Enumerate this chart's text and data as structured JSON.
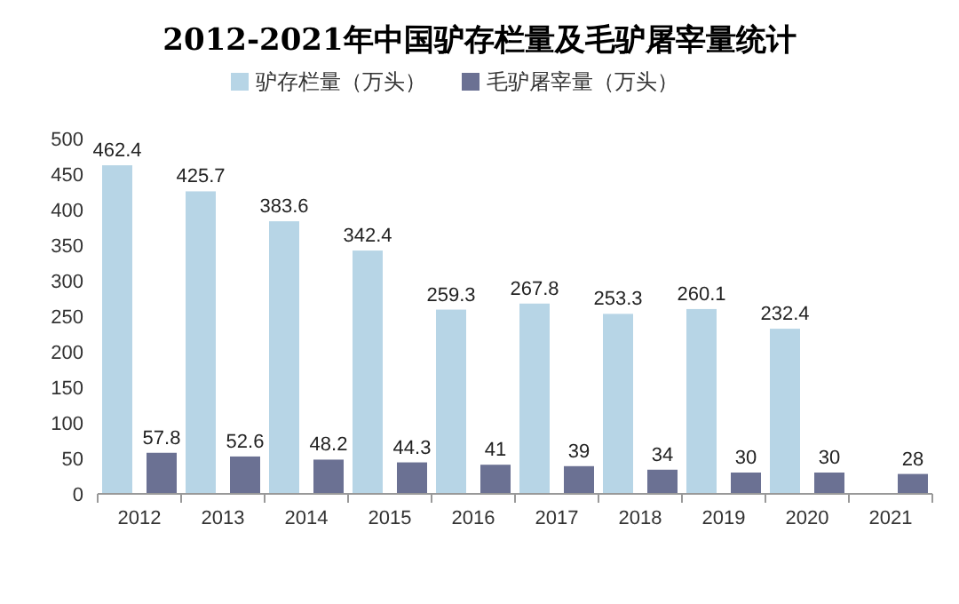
{
  "chart_data": {
    "type": "bar",
    "title": "2012-2021年中国驴存栏量及毛驴屠宰量统计",
    "categories": [
      "2012",
      "2013",
      "2014",
      "2015",
      "2016",
      "2017",
      "2018",
      "2019",
      "2020",
      "2021"
    ],
    "series": [
      {
        "name": "驴存栏量（万头）",
        "color": "#b7d5e6",
        "values": [
          462.4,
          425.7,
          383.6,
          342.4,
          259.3,
          267.8,
          253.3,
          260.1,
          232.4,
          null
        ]
      },
      {
        "name": "毛驴屠宰量（万头）",
        "color": "#6b7193",
        "values": [
          57.8,
          52.6,
          48.2,
          44.3,
          41,
          39,
          34,
          30,
          30,
          28
        ]
      }
    ],
    "ylim": [
      0,
      500
    ],
    "yticks": [
      0,
      50,
      100,
      150,
      200,
      250,
      300,
      350,
      400,
      450,
      500
    ],
    "grid": false,
    "legend": "top",
    "data_labels": true
  }
}
